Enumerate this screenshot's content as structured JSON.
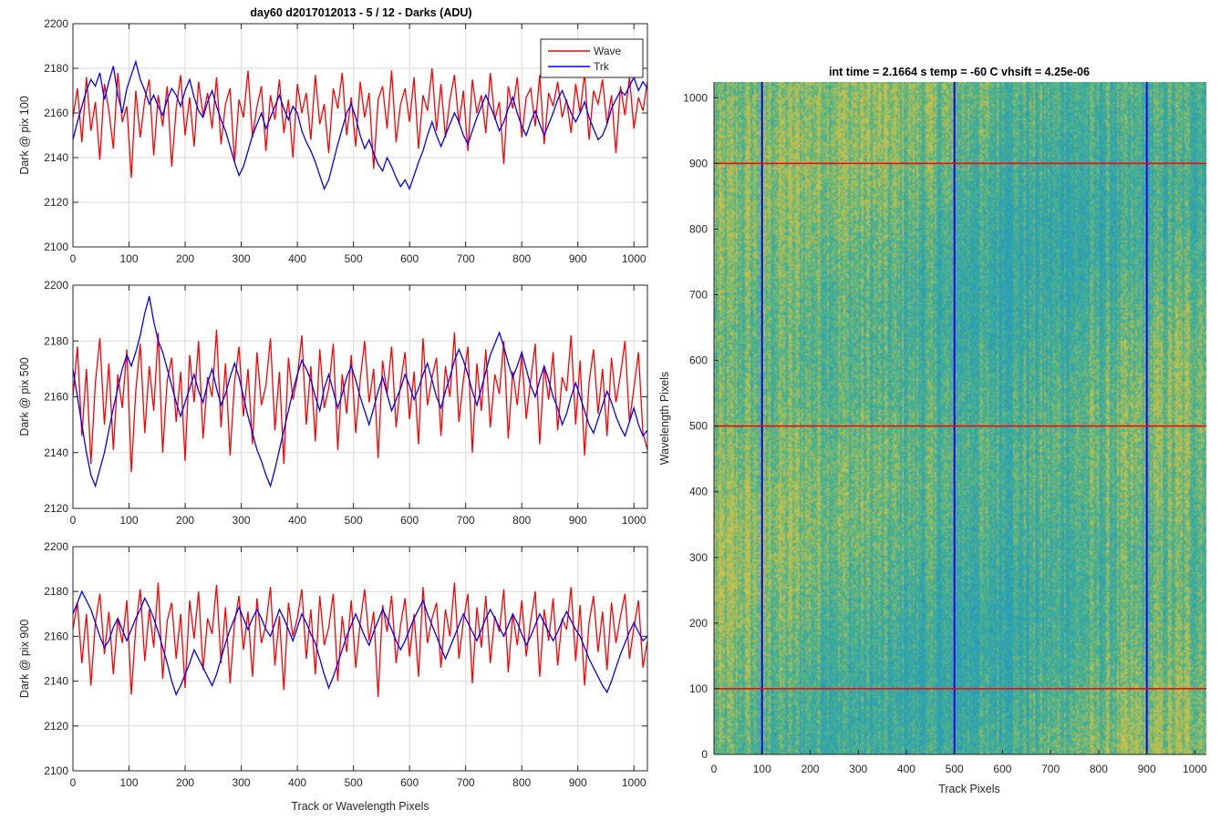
{
  "figure_title": "day60 d2017012013 - 5 / 12 - Darks (ADU)",
  "heatmap_title": "int time = 2.1664 s    temp = -60 C    vhsift = 4.25e-06",
  "colors": {
    "wave": "#ff0000",
    "trk": "#0000ff",
    "heat_low": "#2a9db8",
    "heat_mid": "#4cb38a",
    "heat_high": "#c9c14a"
  },
  "chart_data": [
    {
      "type": "line",
      "ylabel": "Dark @ pix 100",
      "xlabel": "",
      "xlim": [
        0,
        1024
      ],
      "ylim": [
        2100,
        2200
      ],
      "xticks": [
        0,
        100,
        200,
        300,
        400,
        500,
        600,
        700,
        800,
        900,
        1000
      ],
      "yticks": [
        2100,
        2120,
        2140,
        2160,
        2180,
        2200
      ],
      "grid": true,
      "legend": {
        "placement": "top-right",
        "entries": [
          "Wave",
          "Trk"
        ]
      },
      "series": [
        {
          "name": "Wave",
          "color": "#ff0000",
          "x_step": 8,
          "values": [
            2158,
            2171,
            2147,
            2176,
            2152,
            2165,
            2139,
            2173,
            2161,
            2144,
            2178,
            2156,
            2163,
            2131,
            2170,
            2149,
            2166,
            2175,
            2141,
            2168,
            2154,
            2172,
            2136,
            2162,
            2177,
            2150,
            2167,
            2145,
            2174,
            2159,
            2169,
            2153,
            2176,
            2146,
            2164,
            2171,
            2138,
            2166,
            2158,
            2179,
            2149,
            2163,
            2172,
            2143,
            2168,
            2157,
            2175,
            2151,
            2166,
            2140,
            2173,
            2160,
            2169,
            2148,
            2177,
            2155,
            2164,
            2142,
            2171,
            2162,
            2178,
            2150,
            2167,
            2145,
            2174,
            2158,
            2169,
            2135,
            2166,
            2172,
            2153,
            2179,
            2147,
            2164,
            2171,
            2156,
            2176,
            2144,
            2168,
            2161,
            2180,
            2152,
            2173,
            2149,
            2166,
            2177,
            2155,
            2170,
            2143,
            2175,
            2160,
            2168,
            2151,
            2178,
            2157,
            2165,
            2137,
            2172,
            2162,
            2176,
            2149,
            2167,
            2171,
            2154,
            2177,
            2146,
            2169,
            2163,
            2174,
            2158,
            2166,
            2151,
            2173,
            2160,
            2178,
            2148,
            2170,
            2164,
            2175,
            2155,
            2168,
            2142,
            2172,
            2159,
            2176,
            2153,
            2167,
            2161,
            2174
          ]
        },
        {
          "name": "Trk",
          "color": "#0000ff",
          "x_step": 8,
          "values": [
            2148,
            2156,
            2163,
            2170,
            2175,
            2172,
            2178,
            2166,
            2174,
            2181,
            2168,
            2160,
            2171,
            2177,
            2183,
            2175,
            2170,
            2164,
            2168,
            2163,
            2159,
            2166,
            2171,
            2168,
            2163,
            2170,
            2175,
            2167,
            2161,
            2158,
            2165,
            2170,
            2163,
            2157,
            2152,
            2145,
            2138,
            2132,
            2136,
            2143,
            2150,
            2155,
            2160,
            2153,
            2158,
            2163,
            2168,
            2162,
            2157,
            2163,
            2160,
            2152,
            2147,
            2143,
            2138,
            2132,
            2126,
            2130,
            2138,
            2146,
            2153,
            2160,
            2164,
            2158,
            2150,
            2144,
            2148,
            2142,
            2137,
            2134,
            2140,
            2136,
            2131,
            2127,
            2130,
            2126,
            2132,
            2138,
            2143,
            2150,
            2156,
            2150,
            2145,
            2150,
            2155,
            2160,
            2156,
            2150,
            2146,
            2152,
            2158,
            2163,
            2168,
            2163,
            2158,
            2152,
            2156,
            2162,
            2167,
            2160,
            2154,
            2150,
            2156,
            2161,
            2155,
            2150,
            2155,
            2160,
            2166,
            2170,
            2165,
            2160,
            2156,
            2160,
            2165,
            2158,
            2153,
            2148,
            2150,
            2155,
            2162,
            2166,
            2170,
            2168,
            2172,
            2176,
            2170,
            2174,
            2171
          ]
        }
      ]
    },
    {
      "type": "line",
      "ylabel": "Dark @ pix 500",
      "xlabel": "",
      "xlim": [
        0,
        1024
      ],
      "ylim": [
        2120,
        2200
      ],
      "xticks": [
        0,
        100,
        200,
        300,
        400,
        500,
        600,
        700,
        800,
        900,
        1000
      ],
      "yticks": [
        2120,
        2140,
        2160,
        2180,
        2200
      ],
      "grid": true,
      "series": [
        {
          "name": "Wave",
          "color": "#ff0000",
          "x_step": 8,
          "values": [
            2160,
            2178,
            2146,
            2170,
            2136,
            2165,
            2181,
            2150,
            2172,
            2141,
            2168,
            2156,
            2177,
            2133,
            2162,
            2179,
            2147,
            2171,
            2155,
            2183,
            2140,
            2166,
            2174,
            2151,
            2169,
            2137,
            2175,
            2158,
            2180,
            2145,
            2167,
            2160,
            2184,
            2149,
            2172,
            2139,
            2165,
            2178,
            2153,
            2170,
            2143,
            2176,
            2157,
            2164,
            2181,
            2148,
            2169,
            2136,
            2174,
            2159,
            2167,
            2182,
            2150,
            2171,
            2144,
            2177,
            2156,
            2163,
            2179,
            2141,
            2168,
            2154,
            2175,
            2147,
            2166,
            2180,
            2158,
            2170,
            2138,
            2173,
            2161,
            2178,
            2149,
            2165,
            2176,
            2152,
            2169,
            2143,
            2181,
            2157,
            2167,
            2174,
            2146,
            2171,
            2160,
            2183,
            2151,
            2166,
            2178,
            2140,
            2172,
            2155,
            2177,
            2149,
            2168,
            2161,
            2180,
            2145,
            2169,
            2157,
            2175,
            2152,
            2166,
            2179,
            2143,
            2171,
            2159,
            2176,
            2148,
            2167,
            2162,
            2182,
            2150,
            2173,
            2139,
            2165,
            2177,
            2154,
            2170,
            2146,
            2174,
            2158,
            2168,
            2180,
            2151,
            2163,
            2176,
            2147,
            2141
          ]
        },
        {
          "name": "Trk",
          "color": "#0000ff",
          "x_step": 8,
          "values": [
            2170,
            2160,
            2150,
            2140,
            2132,
            2128,
            2134,
            2140,
            2148,
            2156,
            2163,
            2170,
            2175,
            2171,
            2176,
            2182,
            2190,
            2196,
            2187,
            2180,
            2176,
            2170,
            2164,
            2158,
            2153,
            2158,
            2163,
            2168,
            2162,
            2158,
            2165,
            2170,
            2163,
            2157,
            2161,
            2167,
            2172,
            2167,
            2160,
            2153,
            2147,
            2141,
            2137,
            2132,
            2128,
            2134,
            2141,
            2148,
            2155,
            2162,
            2168,
            2173,
            2170,
            2166,
            2160,
            2155,
            2163,
            2168,
            2162,
            2156,
            2161,
            2167,
            2171,
            2166,
            2160,
            2155,
            2150,
            2156,
            2162,
            2167,
            2161,
            2155,
            2159,
            2163,
            2168,
            2164,
            2159,
            2163,
            2168,
            2172,
            2166,
            2160,
            2156,
            2162,
            2167,
            2173,
            2177,
            2173,
            2168,
            2162,
            2157,
            2163,
            2169,
            2175,
            2179,
            2183,
            2178,
            2172,
            2167,
            2171,
            2176,
            2170,
            2164,
            2160,
            2166,
            2171,
            2166,
            2160,
            2156,
            2150,
            2154,
            2160,
            2165,
            2160,
            2155,
            2150,
            2147,
            2152,
            2157,
            2162,
            2158,
            2153,
            2149,
            2146,
            2151,
            2156,
            2150,
            2146,
            2148
          ]
        }
      ]
    },
    {
      "type": "line",
      "ylabel": "Dark @ pix 900",
      "xlabel": "Track or Wavelength Pixels",
      "xlim": [
        0,
        1024
      ],
      "ylim": [
        2100,
        2200
      ],
      "xticks": [
        0,
        100,
        200,
        300,
        400,
        500,
        600,
        700,
        800,
        900,
        1000
      ],
      "yticks": [
        2100,
        2120,
        2140,
        2160,
        2180,
        2200
      ],
      "grid": true,
      "series": [
        {
          "name": "Wave",
          "color": "#ff0000",
          "x_step": 8,
          "values": [
            2163,
            2175,
            2148,
            2170,
            2138,
            2166,
            2179,
            2152,
            2171,
            2143,
            2168,
            2157,
            2176,
            2134,
            2164,
            2181,
            2149,
            2172,
            2155,
            2184,
            2141,
            2167,
            2175,
            2150,
            2170,
            2137,
            2176,
            2159,
            2180,
            2145,
            2168,
            2161,
            2183,
            2148,
            2173,
            2139,
            2166,
            2178,
            2154,
            2171,
            2142,
            2177,
            2157,
            2165,
            2182,
            2147,
            2169,
            2136,
            2175,
            2160,
            2168,
            2181,
            2150,
            2172,
            2143,
            2178,
            2156,
            2164,
            2179,
            2140,
            2169,
            2153,
            2176,
            2146,
            2166,
            2181,
            2158,
            2171,
            2133,
            2174,
            2162,
            2178,
            2148,
            2165,
            2177,
            2151,
            2170,
            2142,
            2182,
            2157,
            2168,
            2175,
            2146,
            2172,
            2160,
            2184,
            2150,
            2167,
            2179,
            2139,
            2173,
            2155,
            2178,
            2148,
            2169,
            2162,
            2181,
            2144,
            2170,
            2156,
            2176,
            2151,
            2167,
            2180,
            2142,
            2172,
            2158,
            2177,
            2147,
            2168,
            2163,
            2182,
            2149,
            2174,
            2138,
            2166,
            2178,
            2153,
            2171,
            2145,
            2175,
            2157,
            2169,
            2179,
            2150,
            2164,
            2176,
            2146,
            2158
          ]
        },
        {
          "name": "Trk",
          "color": "#0000ff",
          "x_step": 8,
          "values": [
            2170,
            2175,
            2180,
            2176,
            2172,
            2166,
            2160,
            2155,
            2158,
            2164,
            2168,
            2163,
            2158,
            2163,
            2168,
            2172,
            2177,
            2173,
            2168,
            2162,
            2155,
            2148,
            2140,
            2134,
            2138,
            2143,
            2148,
            2154,
            2150,
            2146,
            2142,
            2138,
            2143,
            2150,
            2157,
            2163,
            2168,
            2173,
            2168,
            2163,
            2168,
            2172,
            2168,
            2163,
            2160,
            2166,
            2172,
            2168,
            2163,
            2158,
            2164,
            2170,
            2166,
            2161,
            2157,
            2150,
            2143,
            2137,
            2142,
            2148,
            2154,
            2160,
            2165,
            2170,
            2165,
            2160,
            2156,
            2162,
            2167,
            2172,
            2168,
            2163,
            2158,
            2154,
            2158,
            2163,
            2168,
            2172,
            2176,
            2170,
            2165,
            2160,
            2155,
            2150,
            2155,
            2160,
            2165,
            2170,
            2166,
            2162,
            2158,
            2163,
            2168,
            2172,
            2168,
            2164,
            2160,
            2165,
            2170,
            2166,
            2161,
            2156,
            2160,
            2165,
            2170,
            2166,
            2162,
            2158,
            2162,
            2167,
            2171,
            2167,
            2163,
            2160,
            2155,
            2150,
            2146,
            2142,
            2138,
            2135,
            2140,
            2146,
            2152,
            2157,
            2162,
            2166,
            2162,
            2158,
            2160
          ]
        }
      ]
    },
    {
      "type": "heatmap",
      "title": "int time = 2.1664 s    temp = -60 C    vhsift = 4.25e-06",
      "xlabel": "Track Pixels",
      "ylabel": "Wavelength Pixels",
      "xlim": [
        0,
        1024
      ],
      "ylim": [
        0,
        1024
      ],
      "xticks": [
        0,
        100,
        200,
        300,
        400,
        500,
        600,
        700,
        800,
        900,
        1000
      ],
      "yticks": [
        0,
        100,
        200,
        300,
        400,
        500,
        600,
        700,
        800,
        900,
        1000
      ],
      "vertical_markers": [
        100,
        500,
        900
      ],
      "horizontal_markers": [
        100,
        500,
        900
      ],
      "vertical_marker_color": "#0000ff",
      "horizontal_marker_color": "#ff0000"
    }
  ]
}
